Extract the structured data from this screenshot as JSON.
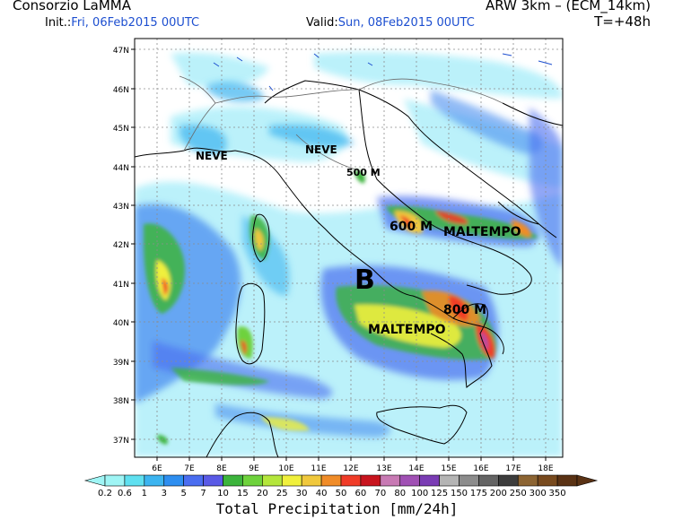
{
  "header": {
    "org": "Consorzio LaMMA",
    "model": "ARW 3km – (ECM_14km)",
    "init_label": "Init.:",
    "init_value": "Fri, 06Feb2015 00UTC",
    "valid_label": "Valid:",
    "valid_value": "Sun, 08Feb2015 00UTC",
    "lead_time": "T=+48h"
  },
  "axes": {
    "lat_labels": [
      "47N",
      "46N",
      "45N",
      "44N",
      "43N",
      "42N",
      "41N",
      "40N",
      "39N",
      "38N",
      "37N"
    ],
    "lon_labels": [
      "6E",
      "7E",
      "8E",
      "9E",
      "10E",
      "11E",
      "12E",
      "13E",
      "14E",
      "15E",
      "16E",
      "17E",
      "18E"
    ]
  },
  "annotations": {
    "neve_west": "NEVE",
    "neve_central": "NEVE",
    "snow_500": "500 M",
    "snow_600": "600 M",
    "maltempo_east": "MALTEMPO",
    "low_center": "B",
    "snow_800": "800 M",
    "maltempo_south": "MALTEMPO"
  },
  "legend": {
    "title": "Total Precipitation [mm/24h]",
    "ticks": [
      "0.2",
      "0.6",
      "1",
      "3",
      "5",
      "7",
      "10",
      "15",
      "20",
      "25",
      "30",
      "40",
      "50",
      "60",
      "70",
      "80",
      "100",
      "125",
      "150",
      "175",
      "200",
      "250",
      "300",
      "350"
    ],
    "colors": [
      "#9ff5f5",
      "#5fe0f0",
      "#3cb4f0",
      "#2d8ef0",
      "#4a6df0",
      "#5a5ae6",
      "#3cb43c",
      "#6ed23c",
      "#b4e63c",
      "#f0f03c",
      "#f0c83c",
      "#f08c28",
      "#f03c28",
      "#c8141e",
      "#c87ab4",
      "#a050b4",
      "#7a3cb4",
      "#b4b4b4",
      "#8c8c8c",
      "#646464",
      "#3c3c3c",
      "#8c6432",
      "#784a1e",
      "#5a3214"
    ]
  }
}
